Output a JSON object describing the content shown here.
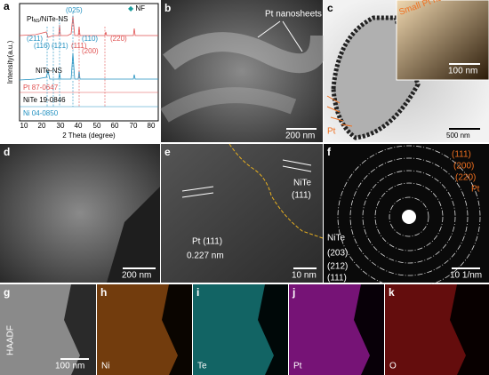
{
  "panels": {
    "a": {
      "letter": "a",
      "legend": {
        "sample": "Pt",
        "sample_sub": "NS",
        "sample_rest": "/NiTe-NS",
        "marker": "NF"
      },
      "patterns": [
        "NiTe-NS",
        "Pt 87-0647",
        "NiTe 19-0846",
        "Ni 04-0850"
      ],
      "peaks": [
        "(025)",
        "(211)",
        "(116)",
        "(121)",
        "(111)",
        "(110)",
        "(200)",
        "(220)"
      ],
      "x_ticks": [
        "10",
        "20",
        "30",
        "40",
        "50",
        "60",
        "70",
        "80"
      ],
      "x_label": "2 Theta (degree)",
      "y_label": "Intensity(a.u.)"
    },
    "b": {
      "letter": "b",
      "label": "Pt nanosheets",
      "scale": "200 nm"
    },
    "c": {
      "letter": "c",
      "inset_label": "Small Pt nanosheets",
      "inset_scale": "100 nm",
      "label": "Pt",
      "scale": "500 nm"
    },
    "d": {
      "letter": "d",
      "scale": "200 nm"
    },
    "e": {
      "letter": "e",
      "nite": "NiTe",
      "nite_plane": "(111)",
      "pt": "Pt (111)",
      "spacing": "0.227 nm",
      "scale": "10 nm"
    },
    "f": {
      "letter": "f",
      "pt_rings": [
        "(111)",
        "(200)",
        "(220)"
      ],
      "pt": "Pt",
      "nite": "NiTe",
      "nite_rings": [
        "(203)",
        "(212)",
        "(111)"
      ],
      "scale": "10 1/nm"
    },
    "g": {
      "letter": "g",
      "label": "HAADF",
      "scale": "100 nm"
    },
    "h": {
      "letter": "h",
      "label": "Ni"
    },
    "i": {
      "letter": "i",
      "label": "Te"
    },
    "j": {
      "letter": "j",
      "label": "Pt"
    },
    "k": {
      "letter": "k",
      "label": "O"
    }
  }
}
